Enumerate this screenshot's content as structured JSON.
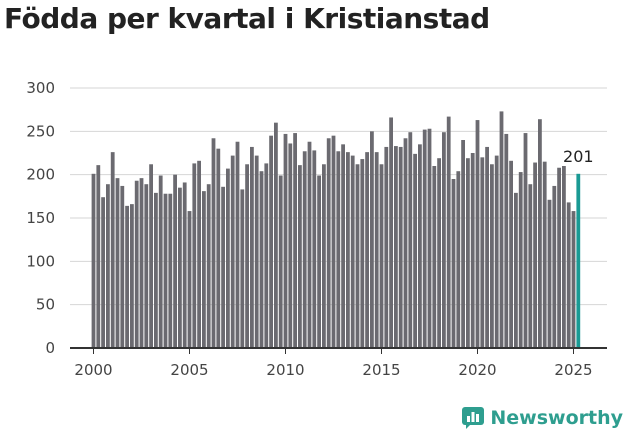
{
  "colors": {
    "bar": "#6b6a70",
    "highlight": "#1a9a94",
    "brand": "#2e9e8f",
    "grid": "#d6d6d6"
  },
  "brand": {
    "name": "Newsworthy",
    "icon": "bar-chart-chat-icon"
  },
  "chart_data": {
    "type": "bar",
    "title": "Födda per kvartal i Kristianstad",
    "xlabel": "",
    "ylabel": "",
    "ylim": [
      0,
      300
    ],
    "yticks": [
      0,
      50,
      100,
      150,
      200,
      250,
      300
    ],
    "xticks": [
      "2000",
      "2005",
      "2010",
      "2015",
      "2020",
      "2025"
    ],
    "grid": true,
    "highlight_label": "201",
    "categories": [
      "2000 Q1",
      "2000 Q2",
      "2000 Q3",
      "2000 Q4",
      "2001 Q1",
      "2001 Q2",
      "2001 Q3",
      "2001 Q4",
      "2002 Q1",
      "2002 Q2",
      "2002 Q3",
      "2002 Q4",
      "2003 Q1",
      "2003 Q2",
      "2003 Q3",
      "2003 Q4",
      "2004 Q1",
      "2004 Q2",
      "2004 Q3",
      "2004 Q4",
      "2005 Q1",
      "2005 Q2",
      "2005 Q3",
      "2005 Q4",
      "2006 Q1",
      "2006 Q2",
      "2006 Q3",
      "2006 Q4",
      "2007 Q1",
      "2007 Q2",
      "2007 Q3",
      "2007 Q4",
      "2008 Q1",
      "2008 Q2",
      "2008 Q3",
      "2008 Q4",
      "2009 Q1",
      "2009 Q2",
      "2009 Q3",
      "2009 Q4",
      "2010 Q1",
      "2010 Q2",
      "2010 Q3",
      "2010 Q4",
      "2011 Q1",
      "2011 Q2",
      "2011 Q3",
      "2011 Q4",
      "2012 Q1",
      "2012 Q2",
      "2012 Q3",
      "2012 Q4",
      "2013 Q1",
      "2013 Q2",
      "2013 Q3",
      "2013 Q4",
      "2014 Q1",
      "2014 Q2",
      "2014 Q3",
      "2014 Q4",
      "2015 Q1",
      "2015 Q2",
      "2015 Q3",
      "2015 Q4",
      "2016 Q1",
      "2016 Q2",
      "2016 Q3",
      "2016 Q4",
      "2017 Q1",
      "2017 Q2",
      "2017 Q3",
      "2017 Q4",
      "2018 Q1",
      "2018 Q2",
      "2018 Q3",
      "2018 Q4",
      "2019 Q1",
      "2019 Q2",
      "2019 Q3",
      "2019 Q4",
      "2020 Q1",
      "2020 Q2",
      "2020 Q3",
      "2020 Q4",
      "2021 Q1",
      "2021 Q2",
      "2021 Q3",
      "2021 Q4",
      "2022 Q1",
      "2022 Q2",
      "2022 Q3",
      "2022 Q4",
      "2023 Q1",
      "2023 Q2",
      "2023 Q3",
      "2023 Q4",
      "2024 Q1",
      "2024 Q2",
      "2024 Q3",
      "2024 Q4",
      "2025 Q1",
      "2025 Q2"
    ],
    "values": [
      201,
      211,
      174,
      189,
      226,
      196,
      187,
      164,
      166,
      193,
      196,
      189,
      212,
      179,
      199,
      178,
      178,
      200,
      185,
      191,
      158,
      213,
      216,
      181,
      189,
      242,
      230,
      186,
      207,
      222,
      238,
      183,
      212,
      232,
      222,
      204,
      213,
      245,
      260,
      199,
      247,
      236,
      248,
      211,
      227,
      238,
      228,
      199,
      212,
      242,
      245,
      227,
      235,
      226,
      222,
      212,
      218,
      226,
      250,
      226,
      212,
      232,
      266,
      233,
      232,
      242,
      249,
      224,
      235,
      252,
      253,
      210,
      219,
      249,
      267,
      195,
      204,
      240,
      219,
      225,
      263,
      220,
      232,
      212,
      222,
      273,
      247,
      216,
      179,
      203,
      248,
      189,
      214,
      264,
      215,
      171,
      187,
      208,
      210,
      168,
      158,
      201
    ]
  }
}
